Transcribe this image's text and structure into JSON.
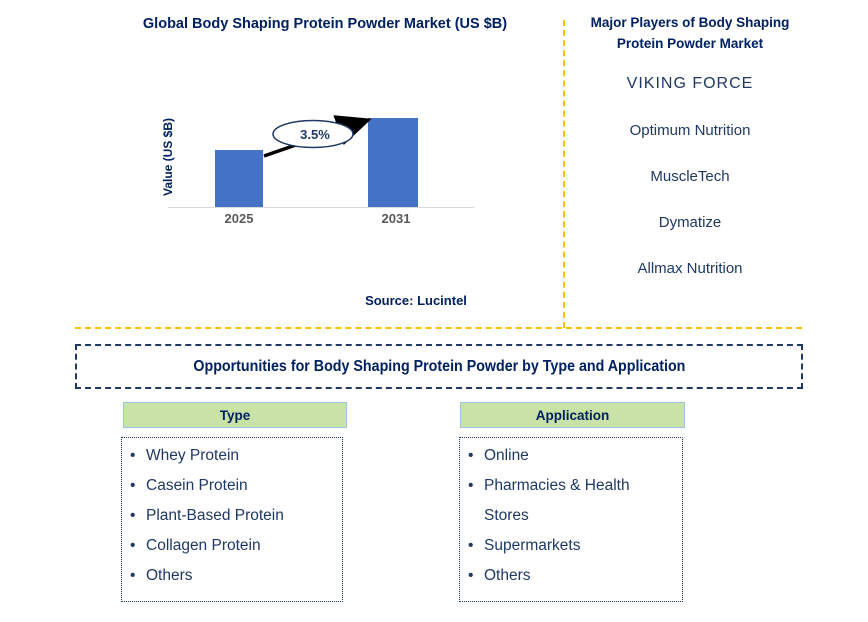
{
  "chart_data": {
    "type": "bar",
    "title": "Global Body Shaping Protein Powder Market (US $B)",
    "categories": [
      "2025",
      "2031"
    ],
    "values": [
      0.64,
      1.0
    ],
    "values_note": "no numeric value axis shown; values are relative bar heights",
    "xlabel": "",
    "ylabel": "Value (US $B)",
    "growth_label": "3.5%",
    "bar_color": "#4472c4",
    "grid": false,
    "legend": false,
    "source": "Source: Lucintel"
  },
  "major_players": {
    "title": "Major Players of Body Shaping Protein Powder Market",
    "items": [
      "VIKING FORCE",
      "Optimum Nutrition",
      "MuscleTech",
      "Dymatize",
      "Allmax Nutrition"
    ]
  },
  "opportunities": {
    "title": "Opportunities for Body Shaping Protein Powder by Type and Application",
    "bullet": "•",
    "type": {
      "header": "Type",
      "items": [
        "Whey Protein",
        "Casein Protein",
        "Plant-Based Protein",
        "Collagen Protein",
        "Others"
      ]
    },
    "application": {
      "header": "Application",
      "items": [
        "Online",
        "Pharmacies & Health Stores",
        "Supermarkets",
        "Others"
      ]
    }
  },
  "colors": {
    "navy": "#002060",
    "blue": "#1f3864",
    "bar": "#4472c4",
    "gold": "#ffc000",
    "green": "#c9e2a6",
    "green_border": "#9dc3e6",
    "tick_gray": "#595959",
    "axis_gray": "#d9d9d9"
  }
}
